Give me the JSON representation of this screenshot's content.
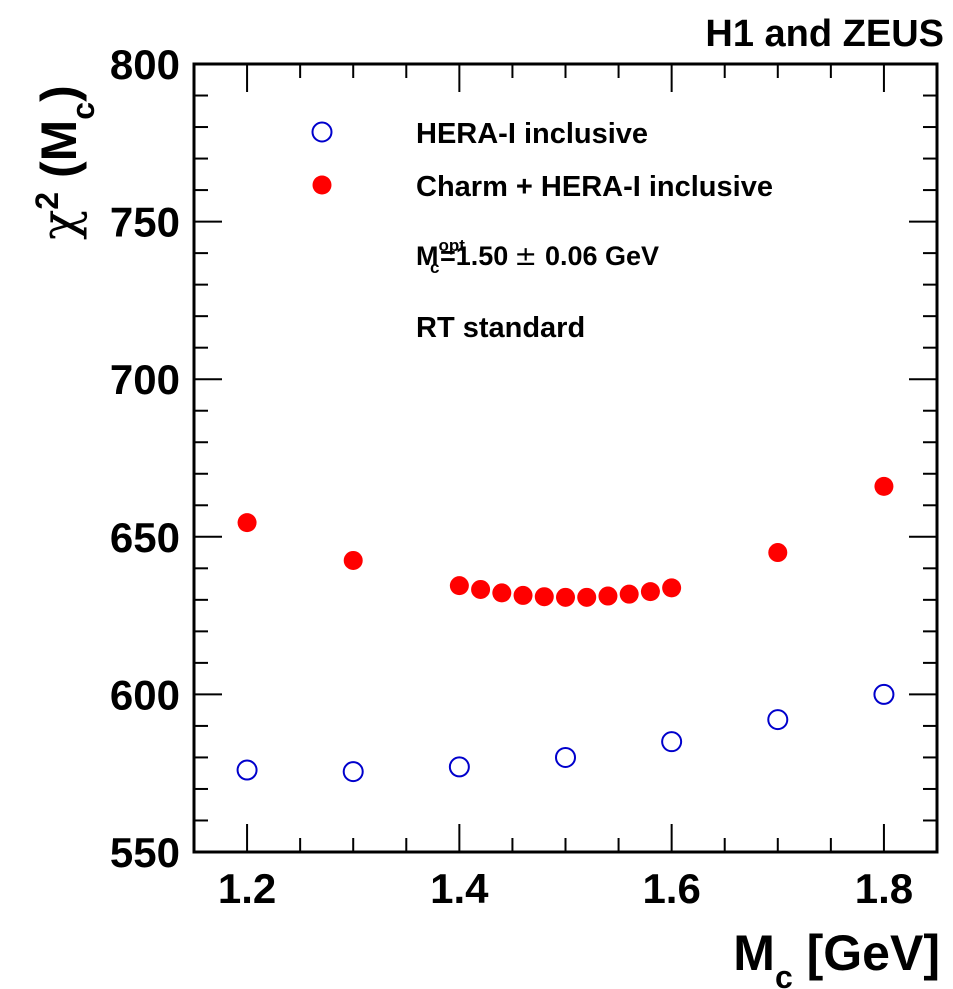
{
  "header": {
    "collaboration": "H1 and ZEUS"
  },
  "axes": {
    "ylabel_parts": {
      "chi": "χ",
      "sup": "2",
      "open": " (M",
      "sub": "c",
      "close": ")"
    },
    "xlabel_parts": {
      "main": "M",
      "sub": "c",
      "unit": " [GeV]"
    }
  },
  "legend": {
    "entry1": "HERA-I inclusive",
    "entry2": "Charm + HERA-I inclusive",
    "mc_opt": {
      "m": "M",
      "sup": "opt",
      "sub": "c",
      "value": "=1.50",
      "pm": "±",
      "err": "0.06 GeV"
    },
    "scheme": "RT standard"
  },
  "chart_data": {
    "type": "scatter",
    "title": "H1 and ZEUS",
    "xlabel": "M_c [GeV]",
    "ylabel": "χ² (M_c)",
    "xlim": [
      1.15,
      1.85
    ],
    "ylim": [
      550,
      800
    ],
    "xticks": [
      1.2,
      1.4,
      1.6,
      1.8
    ],
    "yticks": [
      550,
      600,
      650,
      700,
      750,
      800
    ],
    "grid": false,
    "legend_position": "top-left",
    "series": [
      {
        "name": "HERA-I inclusive",
        "marker": "open-circle",
        "color": "#0000cc",
        "x": [
          1.2,
          1.3,
          1.4,
          1.5,
          1.6,
          1.7,
          1.8
        ],
        "y": [
          576,
          575.5,
          577,
          580,
          585,
          592,
          600
        ]
      },
      {
        "name": "Charm + HERA-I inclusive",
        "marker": "filled-circle",
        "color": "#ff0000",
        "x": [
          1.2,
          1.3,
          1.4,
          1.42,
          1.44,
          1.46,
          1.48,
          1.5,
          1.52,
          1.54,
          1.56,
          1.58,
          1.6,
          1.7,
          1.8
        ],
        "y": [
          654.5,
          642.5,
          634.5,
          633.3,
          632.2,
          631.4,
          631,
          630.8,
          630.8,
          631.2,
          631.8,
          632.6,
          633.8,
          645,
          666
        ]
      }
    ]
  }
}
